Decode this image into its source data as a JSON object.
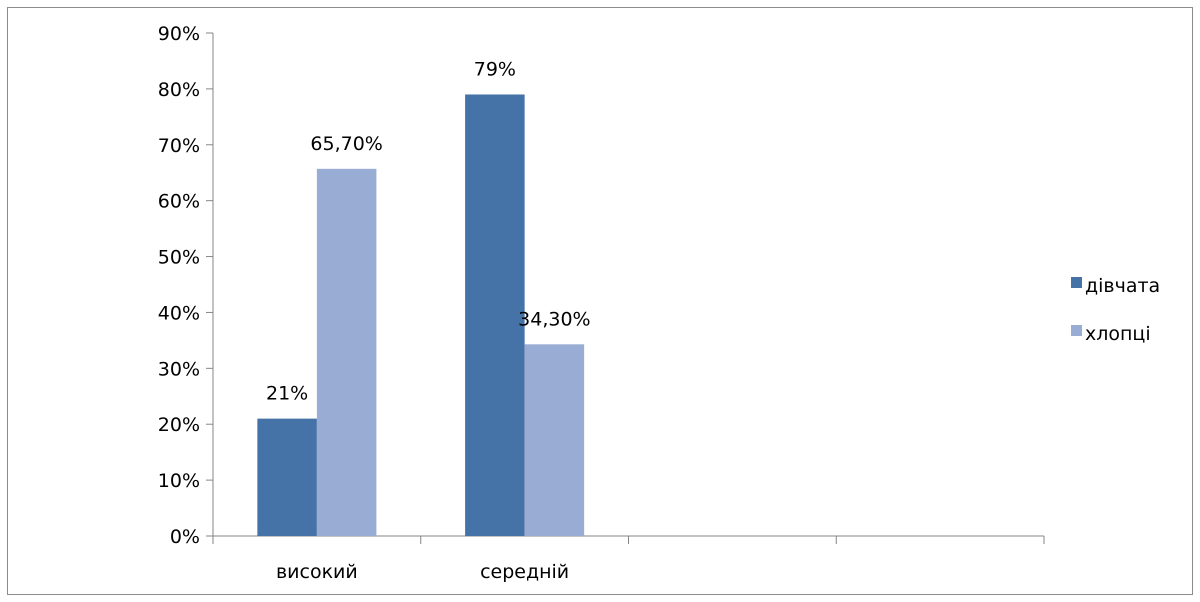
{
  "chart_data": {
    "type": "bar",
    "categories": [
      "високий",
      "середній",
      "",
      ""
    ],
    "series": [
      {
        "name": "дівчата",
        "color": "#4572a7",
        "values": [
          21,
          79,
          null,
          null
        ],
        "labels": [
          "21%",
          "79%",
          "",
          ""
        ]
      },
      {
        "name": "хлопці",
        "color": "#99acd3",
        "values": [
          65.7,
          34.3,
          null,
          null
        ],
        "labels": [
          "65,70%",
          "34,30%",
          "",
          ""
        ]
      }
    ],
    "ylim": [
      0,
      90
    ],
    "yticks": [
      "0%",
      "10%",
      "20%",
      "30%",
      "40%",
      "50%",
      "60%",
      "70%",
      "80%",
      "90%"
    ],
    "grid": false,
    "legend": "right",
    "title": "",
    "xlabel": "",
    "ylabel": ""
  }
}
